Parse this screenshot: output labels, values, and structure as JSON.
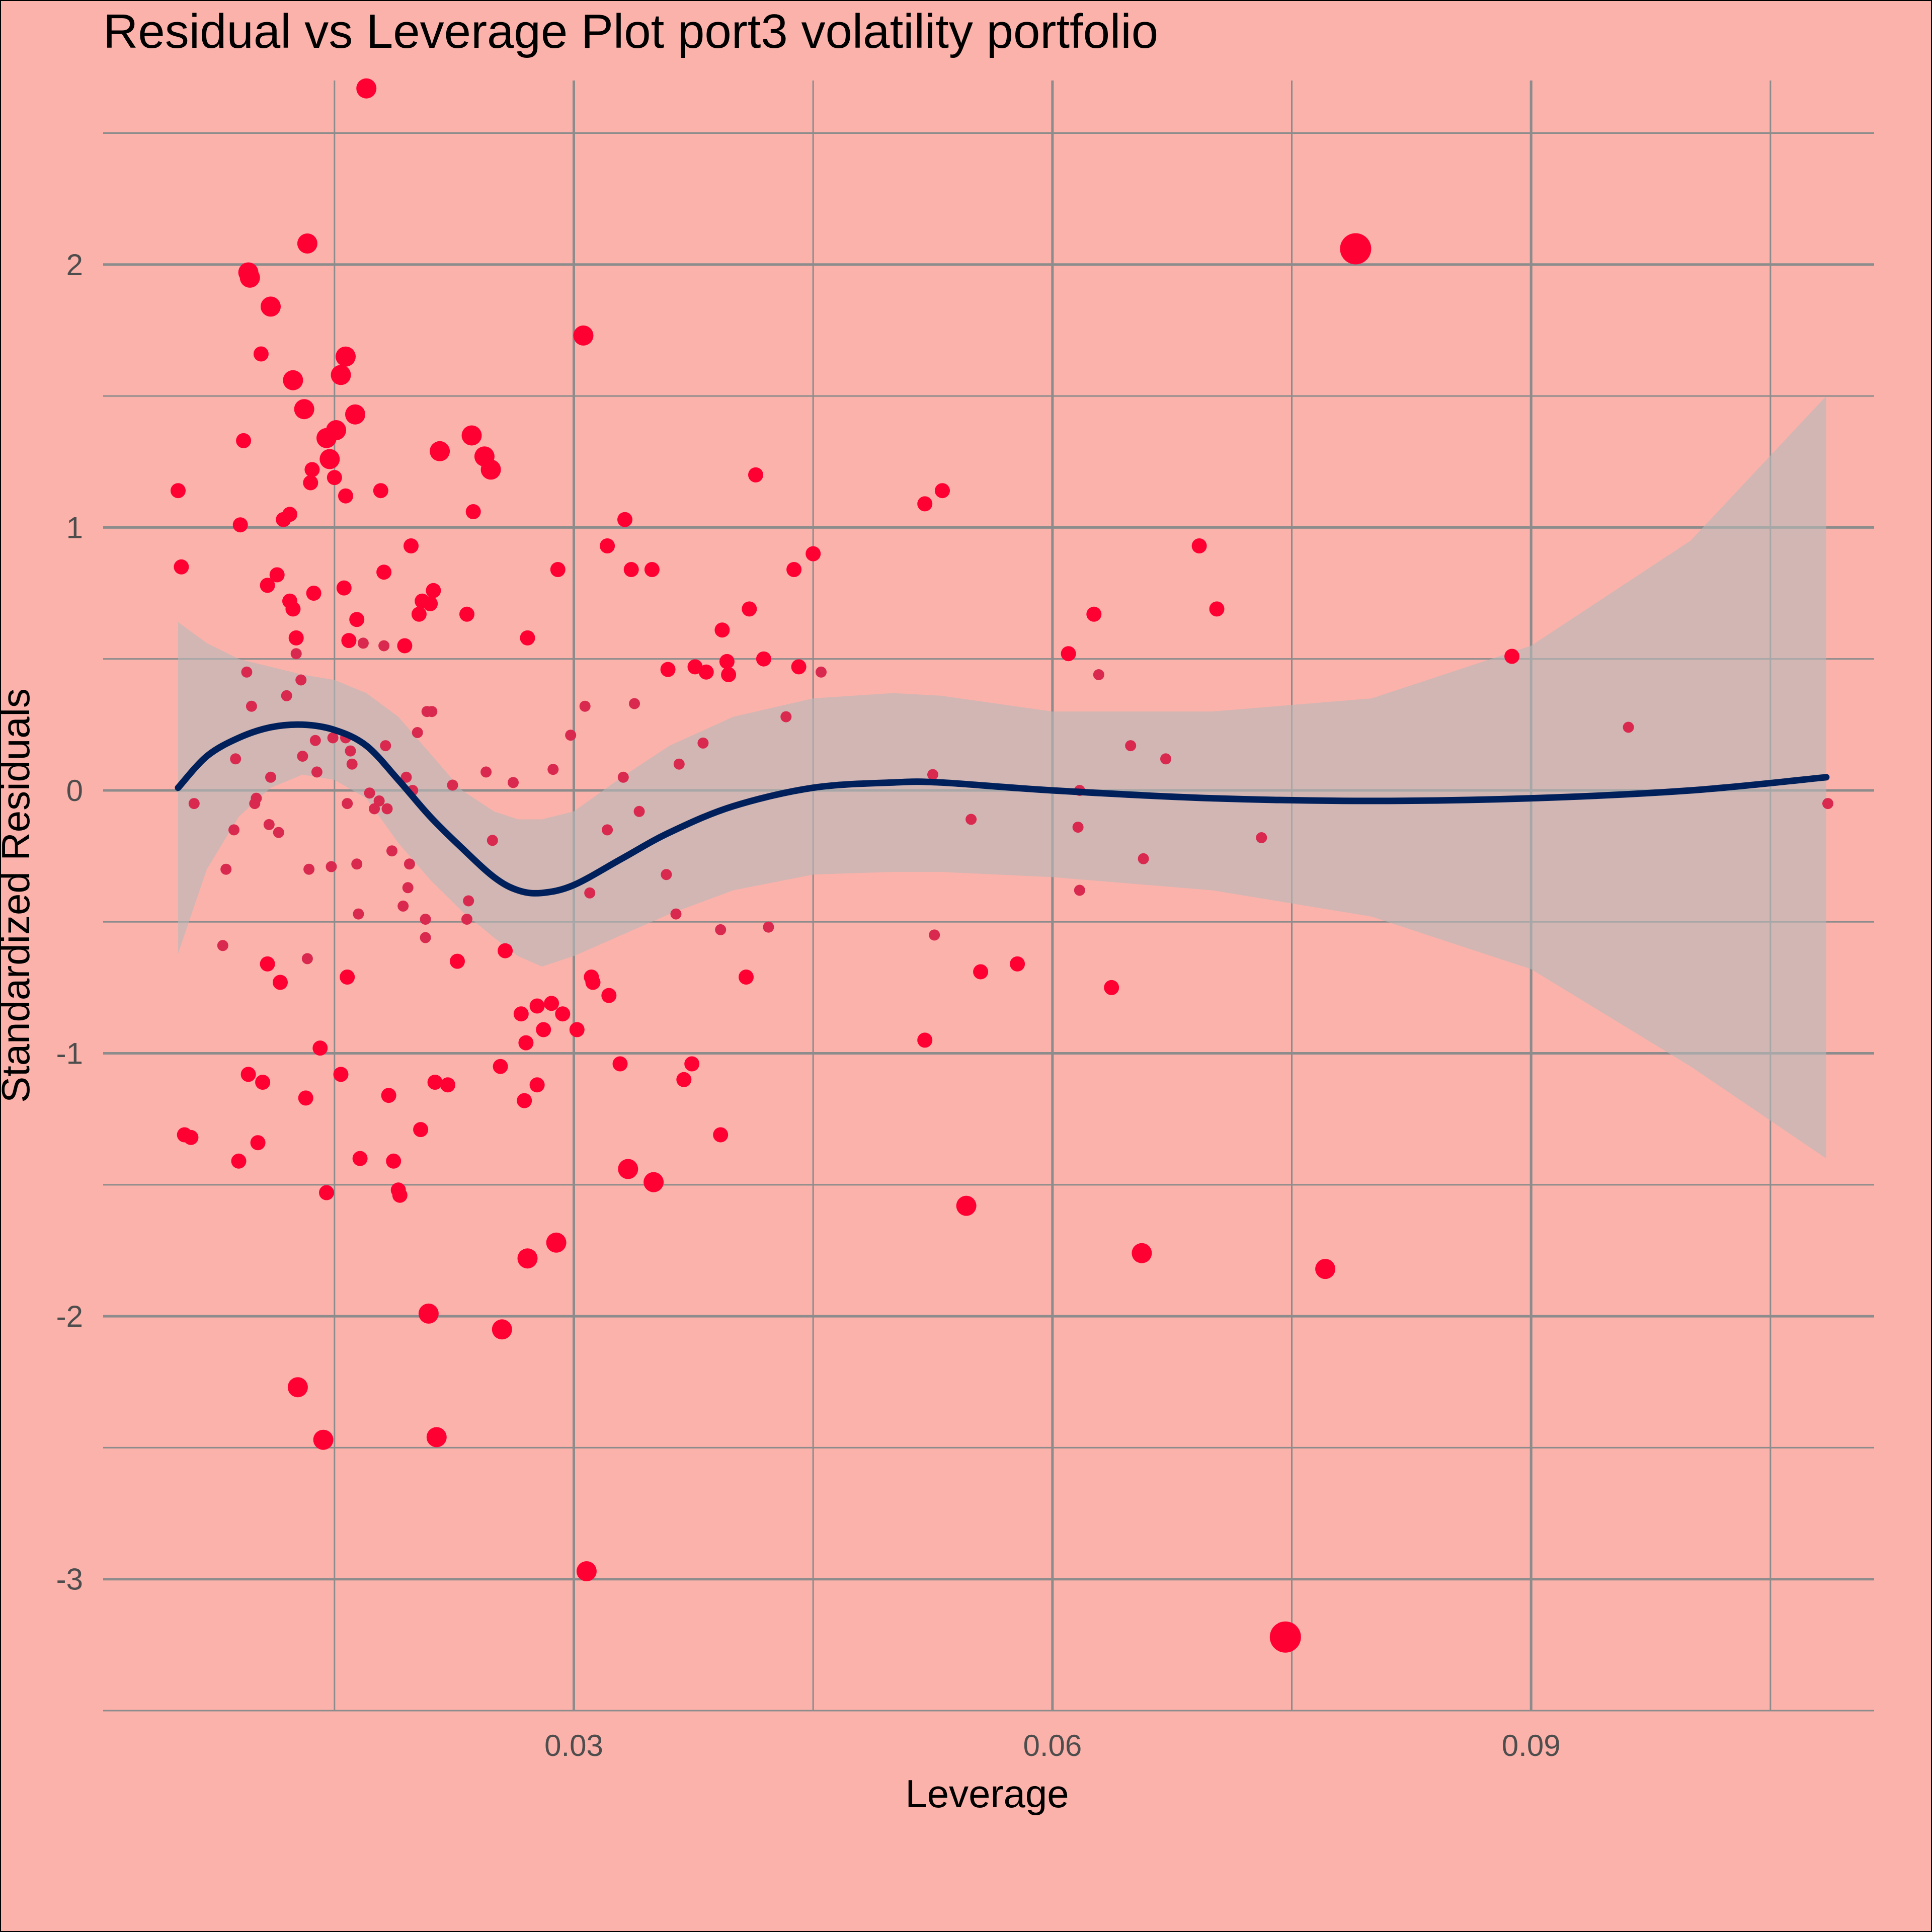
{
  "chart_data": {
    "type": "scatter",
    "title": "Residual vs Leverage Plot port3 volatility portfolio",
    "xlabel": "Leverage",
    "ylabel": "Standardized Residuals",
    "xlim": [
      0.0005,
      0.1115
    ],
    "ylim": [
      -3.5,
      2.7
    ],
    "x_ticks": [
      0.03,
      0.06,
      0.09
    ],
    "x_tick_labels": [
      "0.03",
      "0.06",
      "0.09"
    ],
    "x_minor_ticks": [
      0.015,
      0.045,
      0.075,
      0.105
    ],
    "y_ticks": [
      -3,
      -2,
      -1,
      0,
      1,
      2
    ],
    "y_tick_labels": [
      "-3",
      "-2",
      "-1",
      "0",
      "1",
      "2"
    ],
    "y_minor_ticks": [
      -3.5,
      -2.5,
      -1.5,
      -0.5,
      0.5,
      1.5,
      2.5
    ],
    "grid": true,
    "legend": "none",
    "colors": {
      "background": "#fbb2aa",
      "point": "#ff0033",
      "point_small": "#d9294f",
      "smooth_line": "#00205b",
      "confidence_band": "#b8b8b8",
      "grid": "#8c8c8c",
      "border": "#000000"
    },
    "points": [
      {
        "x": 0.0052,
        "y": 1.14,
        "size": 1
      },
      {
        "x": 0.0054,
        "y": 0.85,
        "size": 1
      },
      {
        "x": 0.0056,
        "y": -1.31,
        "size": 1
      },
      {
        "x": 0.006,
        "y": -1.32,
        "size": 1
      },
      {
        "x": 0.0062,
        "y": -0.05,
        "size": 0
      },
      {
        "x": 0.008,
        "y": -0.59,
        "size": 0
      },
      {
        "x": 0.0082,
        "y": -0.3,
        "size": 0
      },
      {
        "x": 0.0087,
        "y": -0.15,
        "size": 0
      },
      {
        "x": 0.0088,
        "y": 0.12,
        "size": 0
      },
      {
        "x": 0.009,
        "y": -1.41,
        "size": 1
      },
      {
        "x": 0.0091,
        "y": 1.01,
        "size": 1
      },
      {
        "x": 0.0093,
        "y": 1.33,
        "size": 1
      },
      {
        "x": 0.0095,
        "y": 0.45,
        "size": 0
      },
      {
        "x": 0.0096,
        "y": 1.97,
        "size": 2
      },
      {
        "x": 0.0097,
        "y": 1.95,
        "size": 2
      },
      {
        "x": 0.0096,
        "y": -1.08,
        "size": 1
      },
      {
        "x": 0.0098,
        "y": 0.32,
        "size": 0
      },
      {
        "x": 0.01,
        "y": -0.05,
        "size": 0
      },
      {
        "x": 0.0101,
        "y": -0.03,
        "size": 0
      },
      {
        "x": 0.0102,
        "y": -1.34,
        "size": 1
      },
      {
        "x": 0.0104,
        "y": 1.66,
        "size": 1
      },
      {
        "x": 0.0105,
        "y": -1.11,
        "size": 1
      },
      {
        "x": 0.0108,
        "y": 0.78,
        "size": 1
      },
      {
        "x": 0.0108,
        "y": -0.66,
        "size": 1
      },
      {
        "x": 0.0109,
        "y": -0.13,
        "size": 0
      },
      {
        "x": 0.011,
        "y": 1.84,
        "size": 2
      },
      {
        "x": 0.011,
        "y": 0.05,
        "size": 0
      },
      {
        "x": 0.0114,
        "y": 0.82,
        "size": 1
      },
      {
        "x": 0.0115,
        "y": -0.16,
        "size": 0
      },
      {
        "x": 0.0116,
        "y": -0.73,
        "size": 1
      },
      {
        "x": 0.0118,
        "y": 1.03,
        "size": 1
      },
      {
        "x": 0.012,
        "y": 0.36,
        "size": 0
      },
      {
        "x": 0.0122,
        "y": 1.05,
        "size": 1
      },
      {
        "x": 0.0122,
        "y": 0.72,
        "size": 1
      },
      {
        "x": 0.0124,
        "y": 0.69,
        "size": 1
      },
      {
        "x": 0.0124,
        "y": 1.56,
        "size": 2
      },
      {
        "x": 0.0126,
        "y": 0.58,
        "size": 1
      },
      {
        "x": 0.0126,
        "y": 0.52,
        "size": 0
      },
      {
        "x": 0.0127,
        "y": -2.27,
        "size": 2
      },
      {
        "x": 0.0129,
        "y": 0.42,
        "size": 0
      },
      {
        "x": 0.013,
        "y": 0.13,
        "size": 0
      },
      {
        "x": 0.0131,
        "y": 1.45,
        "size": 2
      },
      {
        "x": 0.0132,
        "y": -1.17,
        "size": 1
      },
      {
        "x": 0.0133,
        "y": 2.08,
        "size": 2
      },
      {
        "x": 0.0133,
        "y": -0.64,
        "size": 0
      },
      {
        "x": 0.0134,
        "y": -0.3,
        "size": 0
      },
      {
        "x": 0.0135,
        "y": 1.17,
        "size": 1
      },
      {
        "x": 0.0136,
        "y": 1.22,
        "size": 1
      },
      {
        "x": 0.0137,
        "y": 0.75,
        "size": 1
      },
      {
        "x": 0.0138,
        "y": 0.19,
        "size": 0
      },
      {
        "x": 0.0139,
        "y": 0.07,
        "size": 0
      },
      {
        "x": 0.0141,
        "y": -0.98,
        "size": 1
      },
      {
        "x": 0.0143,
        "y": -2.47,
        "size": 2
      },
      {
        "x": 0.0145,
        "y": -1.53,
        "size": 1
      },
      {
        "x": 0.0145,
        "y": 1.34,
        "size": 2
      },
      {
        "x": 0.0147,
        "y": 1.26,
        "size": 2
      },
      {
        "x": 0.0148,
        "y": -0.29,
        "size": 0
      },
      {
        "x": 0.0149,
        "y": 0.2,
        "size": 0
      },
      {
        "x": 0.015,
        "y": 1.19,
        "size": 1
      },
      {
        "x": 0.0151,
        "y": 1.37,
        "size": 2
      },
      {
        "x": 0.0154,
        "y": 1.58,
        "size": 2
      },
      {
        "x": 0.0154,
        "y": -1.08,
        "size": 1
      },
      {
        "x": 0.0156,
        "y": 0.77,
        "size": 1
      },
      {
        "x": 0.0157,
        "y": 1.65,
        "size": 2
      },
      {
        "x": 0.0157,
        "y": 1.12,
        "size": 1
      },
      {
        "x": 0.0157,
        "y": 0.2,
        "size": 0
      },
      {
        "x": 0.0158,
        "y": -0.05,
        "size": 0
      },
      {
        "x": 0.0158,
        "y": -0.71,
        "size": 1
      },
      {
        "x": 0.0159,
        "y": 0.57,
        "size": 1
      },
      {
        "x": 0.016,
        "y": 0.15,
        "size": 0
      },
      {
        "x": 0.0161,
        "y": 0.1,
        "size": 0
      },
      {
        "x": 0.0163,
        "y": 1.43,
        "size": 2
      },
      {
        "x": 0.0164,
        "y": 0.65,
        "size": 1
      },
      {
        "x": 0.0164,
        "y": -0.28,
        "size": 0
      },
      {
        "x": 0.0165,
        "y": -0.47,
        "size": 0
      },
      {
        "x": 0.0166,
        "y": -1.4,
        "size": 1
      },
      {
        "x": 0.0168,
        "y": 0.56,
        "size": 0
      },
      {
        "x": 0.017,
        "y": 2.67,
        "size": 2
      },
      {
        "x": 0.0172,
        "y": -0.01,
        "size": 0
      },
      {
        "x": 0.0175,
        "y": -0.07,
        "size": 0
      },
      {
        "x": 0.0178,
        "y": -0.04,
        "size": 0
      },
      {
        "x": 0.0179,
        "y": 1.14,
        "size": 1
      },
      {
        "x": 0.0181,
        "y": 0.83,
        "size": 1
      },
      {
        "x": 0.0181,
        "y": 0.55,
        "size": 0
      },
      {
        "x": 0.0182,
        "y": 0.17,
        "size": 0
      },
      {
        "x": 0.0183,
        "y": -0.07,
        "size": 0
      },
      {
        "x": 0.0184,
        "y": -1.16,
        "size": 1
      },
      {
        "x": 0.0186,
        "y": -0.23,
        "size": 0
      },
      {
        "x": 0.0187,
        "y": -1.41,
        "size": 1
      },
      {
        "x": 0.019,
        "y": -1.52,
        "size": 1
      },
      {
        "x": 0.0191,
        "y": -1.54,
        "size": 1
      },
      {
        "x": 0.0193,
        "y": -0.44,
        "size": 0
      },
      {
        "x": 0.0194,
        "y": 0.55,
        "size": 1
      },
      {
        "x": 0.0195,
        "y": 0.05,
        "size": 0
      },
      {
        "x": 0.0196,
        "y": -0.37,
        "size": 0
      },
      {
        "x": 0.0197,
        "y": -0.28,
        "size": 0
      },
      {
        "x": 0.0198,
        "y": 0.93,
        "size": 1
      },
      {
        "x": 0.0199,
        "y": 0.0,
        "size": 0
      },
      {
        "x": 0.0202,
        "y": 0.22,
        "size": 0
      },
      {
        "x": 0.0203,
        "y": 0.67,
        "size": 1
      },
      {
        "x": 0.0204,
        "y": -1.29,
        "size": 1
      },
      {
        "x": 0.0205,
        "y": 0.72,
        "size": 1
      },
      {
        "x": 0.0207,
        "y": -0.49,
        "size": 0
      },
      {
        "x": 0.0207,
        "y": -0.56,
        "size": 0
      },
      {
        "x": 0.0208,
        "y": 0.3,
        "size": 0
      },
      {
        "x": 0.0209,
        "y": -1.99,
        "size": 2
      },
      {
        "x": 0.021,
        "y": 0.71,
        "size": 1
      },
      {
        "x": 0.0211,
        "y": 0.3,
        "size": 0
      },
      {
        "x": 0.0212,
        "y": 0.76,
        "size": 1
      },
      {
        "x": 0.0213,
        "y": -1.11,
        "size": 1
      },
      {
        "x": 0.0214,
        "y": -2.46,
        "size": 2
      },
      {
        "x": 0.0216,
        "y": 1.29,
        "size": 2
      },
      {
        "x": 0.0221,
        "y": -1.12,
        "size": 1
      },
      {
        "x": 0.0224,
        "y": 0.02,
        "size": 0
      },
      {
        "x": 0.0227,
        "y": -0.65,
        "size": 1
      },
      {
        "x": 0.0233,
        "y": 0.67,
        "size": 1
      },
      {
        "x": 0.0233,
        "y": -0.49,
        "size": 0
      },
      {
        "x": 0.0234,
        "y": -0.42,
        "size": 0
      },
      {
        "x": 0.0236,
        "y": 1.35,
        "size": 2
      },
      {
        "x": 0.0237,
        "y": 1.06,
        "size": 1
      },
      {
        "x": 0.0244,
        "y": 1.27,
        "size": 2
      },
      {
        "x": 0.0245,
        "y": 0.07,
        "size": 0
      },
      {
        "x": 0.0248,
        "y": 1.22,
        "size": 2
      },
      {
        "x": 0.0249,
        "y": -0.19,
        "size": 0
      },
      {
        "x": 0.0254,
        "y": -1.05,
        "size": 1
      },
      {
        "x": 0.0255,
        "y": -2.05,
        "size": 2
      },
      {
        "x": 0.0257,
        "y": -0.61,
        "size": 1
      },
      {
        "x": 0.0262,
        "y": 0.03,
        "size": 0
      },
      {
        "x": 0.0267,
        "y": -0.85,
        "size": 1
      },
      {
        "x": 0.0269,
        "y": -1.18,
        "size": 1
      },
      {
        "x": 0.027,
        "y": -0.96,
        "size": 1
      },
      {
        "x": 0.0271,
        "y": 0.58,
        "size": 1
      },
      {
        "x": 0.0271,
        "y": -1.78,
        "size": 2
      },
      {
        "x": 0.0277,
        "y": -0.82,
        "size": 1
      },
      {
        "x": 0.0277,
        "y": -1.12,
        "size": 1
      },
      {
        "x": 0.0281,
        "y": -0.91,
        "size": 1
      },
      {
        "x": 0.0286,
        "y": -0.81,
        "size": 1
      },
      {
        "x": 0.0287,
        "y": 0.08,
        "size": 0
      },
      {
        "x": 0.0289,
        "y": -1.72,
        "size": 2
      },
      {
        "x": 0.029,
        "y": 0.84,
        "size": 1
      },
      {
        "x": 0.0293,
        "y": -0.85,
        "size": 1
      },
      {
        "x": 0.0298,
        "y": 0.21,
        "size": 0
      },
      {
        "x": 0.0302,
        "y": -0.91,
        "size": 1
      },
      {
        "x": 0.0306,
        "y": 1.73,
        "size": 2
      },
      {
        "x": 0.0307,
        "y": 0.32,
        "size": 0
      },
      {
        "x": 0.0308,
        "y": -2.97,
        "size": 2
      },
      {
        "x": 0.031,
        "y": -0.39,
        "size": 0
      },
      {
        "x": 0.0311,
        "y": -0.71,
        "size": 1
      },
      {
        "x": 0.0312,
        "y": -0.73,
        "size": 1
      },
      {
        "x": 0.0321,
        "y": -0.15,
        "size": 0
      },
      {
        "x": 0.0321,
        "y": 0.93,
        "size": 1
      },
      {
        "x": 0.0322,
        "y": -0.78,
        "size": 1
      },
      {
        "x": 0.0329,
        "y": -1.04,
        "size": 1
      },
      {
        "x": 0.0331,
        "y": 0.05,
        "size": 0
      },
      {
        "x": 0.0332,
        "y": 1.03,
        "size": 1
      },
      {
        "x": 0.0334,
        "y": -1.44,
        "size": 2
      },
      {
        "x": 0.0336,
        "y": 0.84,
        "size": 1
      },
      {
        "x": 0.0338,
        "y": 0.33,
        "size": 0
      },
      {
        "x": 0.0341,
        "y": -0.08,
        "size": 0
      },
      {
        "x": 0.0349,
        "y": 0.84,
        "size": 1
      },
      {
        "x": 0.035,
        "y": -1.49,
        "size": 2
      },
      {
        "x": 0.0358,
        "y": -0.32,
        "size": 0
      },
      {
        "x": 0.0359,
        "y": 0.46,
        "size": 1
      },
      {
        "x": 0.0364,
        "y": -0.47,
        "size": 0
      },
      {
        "x": 0.0366,
        "y": 0.1,
        "size": 0
      },
      {
        "x": 0.0369,
        "y": -1.1,
        "size": 1
      },
      {
        "x": 0.0374,
        "y": -1.04,
        "size": 1
      },
      {
        "x": 0.0376,
        "y": 0.47,
        "size": 1
      },
      {
        "x": 0.0381,
        "y": 0.18,
        "size": 0
      },
      {
        "x": 0.0383,
        "y": 0.45,
        "size": 1
      },
      {
        "x": 0.0392,
        "y": -1.31,
        "size": 1
      },
      {
        "x": 0.0392,
        "y": -0.53,
        "size": 0
      },
      {
        "x": 0.0393,
        "y": 0.61,
        "size": 1
      },
      {
        "x": 0.0396,
        "y": 0.49,
        "size": 1
      },
      {
        "x": 0.0397,
        "y": 0.44,
        "size": 1
      },
      {
        "x": 0.0408,
        "y": -0.71,
        "size": 1
      },
      {
        "x": 0.041,
        "y": 0.69,
        "size": 1
      },
      {
        "x": 0.0414,
        "y": 1.2,
        "size": 1
      },
      {
        "x": 0.0419,
        "y": 0.5,
        "size": 1
      },
      {
        "x": 0.0422,
        "y": -0.52,
        "size": 0
      },
      {
        "x": 0.0433,
        "y": 0.28,
        "size": 0
      },
      {
        "x": 0.0438,
        "y": 0.84,
        "size": 1
      },
      {
        "x": 0.0441,
        "y": 0.47,
        "size": 1
      },
      {
        "x": 0.045,
        "y": 0.9,
        "size": 1
      },
      {
        "x": 0.0455,
        "y": 0.45,
        "size": 0
      },
      {
        "x": 0.052,
        "y": 1.09,
        "size": 1
      },
      {
        "x": 0.052,
        "y": -0.95,
        "size": 1
      },
      {
        "x": 0.0525,
        "y": 0.06,
        "size": 0
      },
      {
        "x": 0.0526,
        "y": -0.55,
        "size": 0
      },
      {
        "x": 0.0531,
        "y": 1.14,
        "size": 1
      },
      {
        "x": 0.0546,
        "y": -1.58,
        "size": 2
      },
      {
        "x": 0.0549,
        "y": -0.11,
        "size": 0
      },
      {
        "x": 0.0555,
        "y": -0.69,
        "size": 1
      },
      {
        "x": 0.0578,
        "y": -0.66,
        "size": 1
      },
      {
        "x": 0.061,
        "y": 0.52,
        "size": 1
      },
      {
        "x": 0.0616,
        "y": -0.14,
        "size": 0
      },
      {
        "x": 0.0617,
        "y": 0.0,
        "size": 0
      },
      {
        "x": 0.0617,
        "y": -0.38,
        "size": 0
      },
      {
        "x": 0.0626,
        "y": 0.67,
        "size": 1
      },
      {
        "x": 0.0629,
        "y": 0.44,
        "size": 0
      },
      {
        "x": 0.0637,
        "y": -0.75,
        "size": 1
      },
      {
        "x": 0.0649,
        "y": 0.17,
        "size": 0
      },
      {
        "x": 0.0656,
        "y": -1.76,
        "size": 2
      },
      {
        "x": 0.0657,
        "y": -0.26,
        "size": 0
      },
      {
        "x": 0.0671,
        "y": 0.12,
        "size": 0
      },
      {
        "x": 0.0692,
        "y": 0.93,
        "size": 1
      },
      {
        "x": 0.0703,
        "y": 0.69,
        "size": 1
      },
      {
        "x": 0.0731,
        "y": -0.18,
        "size": 0
      },
      {
        "x": 0.0746,
        "y": -3.22,
        "size": 3
      },
      {
        "x": 0.0771,
        "y": -1.82,
        "size": 2
      },
      {
        "x": 0.079,
        "y": 2.06,
        "size": 3
      },
      {
        "x": 0.0888,
        "y": 0.51,
        "size": 1
      },
      {
        "x": 0.0961,
        "y": 0.24,
        "size": 0
      },
      {
        "x": 0.1086,
        "y": -0.05,
        "size": 0
      }
    ],
    "smooth_line": {
      "x": [
        0.0052,
        0.007,
        0.009,
        0.011,
        0.013,
        0.015,
        0.017,
        0.019,
        0.021,
        0.023,
        0.025,
        0.0265,
        0.028,
        0.03,
        0.033,
        0.036,
        0.04,
        0.045,
        0.05,
        0.053,
        0.06,
        0.07,
        0.08,
        0.09,
        0.1,
        0.1085
      ],
      "y": [
        0.01,
        0.13,
        0.2,
        0.24,
        0.25,
        0.23,
        0.17,
        0.04,
        -0.1,
        -0.22,
        -0.33,
        -0.38,
        -0.39,
        -0.36,
        -0.26,
        -0.16,
        -0.06,
        0.01,
        0.03,
        0.03,
        0.0,
        -0.03,
        -0.04,
        -0.03,
        0.0,
        0.05
      ],
      "upper": [
        0.64,
        0.56,
        0.5,
        0.47,
        0.44,
        0.42,
        0.37,
        0.28,
        0.14,
        0.0,
        -0.08,
        -0.11,
        -0.11,
        -0.08,
        0.05,
        0.17,
        0.28,
        0.35,
        0.37,
        0.36,
        0.3,
        0.3,
        0.35,
        0.55,
        0.95,
        1.5
      ],
      "lower": [
        -0.62,
        -0.3,
        -0.1,
        0.01,
        0.06,
        0.04,
        -0.03,
        -0.2,
        -0.34,
        -0.46,
        -0.56,
        -0.63,
        -0.67,
        -0.63,
        -0.55,
        -0.47,
        -0.38,
        -0.32,
        -0.31,
        -0.31,
        -0.33,
        -0.38,
        -0.48,
        -0.68,
        -1.05,
        -1.4
      ]
    }
  }
}
